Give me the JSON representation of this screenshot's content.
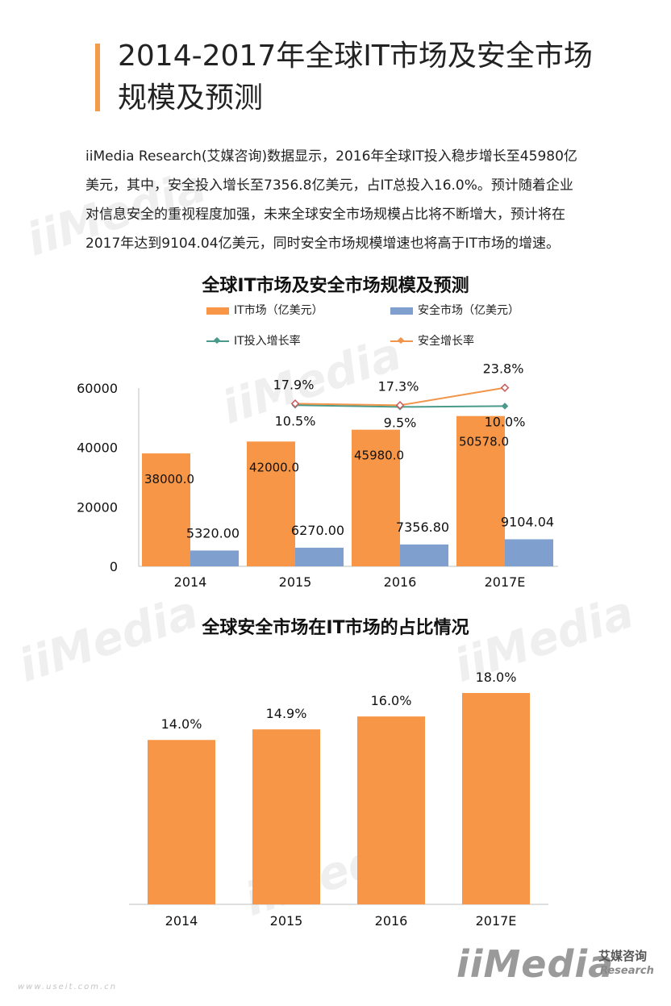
{
  "page": {
    "title_line1": "2014-2017年全球IT市场及安全市场",
    "title_line2": "规模及预测",
    "intro_lines": [
      "iiMedia Research(艾媒咨询)数据显示，2016年全球IT投入稳步增长至45980亿",
      "美元，其中，安全投入增长至7356.8亿美元，占IT总投入16.0%。预计随着企业",
      "对信息安全的重视程度加强，未来全球安全市场规模占比将不断增大，预计将在",
      "2017年达到9104.04亿美元，同时安全市场规模增速也将高于IT市场的增速。"
    ],
    "logo_text": "iiMedia",
    "logo_cn": "艾媒咨询",
    "logo_en": "Research",
    "footer_url": "www.useit.com.cn"
  },
  "colors": {
    "accent": "#f39a4b",
    "it_bar": "#f79646",
    "security_bar": "#7f9fcf",
    "it_growth_line": "#4a9a8c",
    "security_growth_line": "#f0954a",
    "security_marker": "#c95a5a"
  },
  "chart_data": [
    {
      "type": "bar",
      "title": "全球IT市场及安全市场规模及预测",
      "categories": [
        "2014",
        "2015",
        "2016",
        "2017E"
      ],
      "series": [
        {
          "name": "IT市场（亿美元）",
          "values": [
            38000.0,
            42000.0,
            45980.0,
            50578.0
          ],
          "labels": [
            "38000.0",
            "42000.0",
            "45980.0",
            "50578.0"
          ]
        },
        {
          "name": "安全市场（亿美元）",
          "values": [
            5320.0,
            6270.0,
            7356.8,
            9104.04
          ],
          "labels": [
            "5320.00",
            "6270.00",
            "7356.80",
            "9104.04"
          ]
        }
      ],
      "line_series": [
        {
          "name": "IT投入增长率",
          "categories": [
            "2015",
            "2016",
            "2017E"
          ],
          "values": [
            10.5,
            9.5,
            10.0
          ],
          "labels": [
            "10.5%",
            "9.5%",
            "10.0%"
          ]
        },
        {
          "name": "安全增长率",
          "categories": [
            "2015",
            "2016",
            "2017E"
          ],
          "values": [
            17.9,
            17.3,
            23.8
          ],
          "labels": [
            "17.9%",
            "17.3%",
            "23.8%"
          ]
        }
      ],
      "ylim": [
        0,
        60000
      ],
      "yticks": [
        "0",
        "20000",
        "40000",
        "60000"
      ],
      "xlabel": "",
      "ylabel": "",
      "grid": false,
      "legend": "top"
    },
    {
      "type": "bar",
      "title": "全球安全市场在IT市场的占比情况",
      "categories": [
        "2014",
        "2015",
        "2016",
        "2017E"
      ],
      "series": [
        {
          "values": [
            14.0,
            14.9,
            16.0,
            18.0
          ],
          "labels": [
            "14.0%",
            "14.9%",
            "16.0%",
            "18.0%"
          ]
        }
      ],
      "ylim": [
        0,
        20
      ],
      "xlabel": "",
      "ylabel": "",
      "grid": false
    }
  ]
}
